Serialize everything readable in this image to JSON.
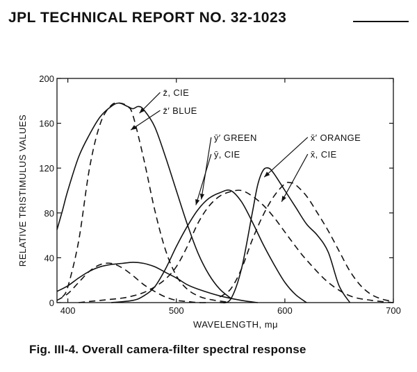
{
  "header": {
    "title": "JPL TECHNICAL REPORT NO. 32-1023"
  },
  "caption": "Fig. III-4.  Overall camera-filter spectral response",
  "chart_data": {
    "type": "line",
    "xlabel": "WAVELENGTH, mμ",
    "ylabel": "RELATIVE TRISTIMULUS VALUES",
    "xlim": [
      390,
      700
    ],
    "ylim": [
      0,
      200
    ],
    "xticks": [
      400,
      500,
      600,
      700
    ],
    "yticks": [
      0,
      40,
      80,
      120,
      160,
      200
    ],
    "grid": false,
    "series": [
      {
        "name": "z̄, CIE",
        "style": "dashed",
        "x": [
          395,
          400,
          410,
          420,
          430,
          440,
          448,
          455,
          460,
          470,
          480,
          490,
          500,
          510,
          520,
          530,
          550
        ],
        "y": [
          5,
          14,
          55,
          120,
          160,
          176,
          178,
          175,
          167,
          128,
          83,
          47,
          24,
          12,
          6,
          3,
          0
        ]
      },
      {
        "name": "z̄′ BLUE",
        "style": "solid",
        "x": [
          390,
          395,
          400,
          410,
          420,
          430,
          440,
          447,
          455,
          460,
          465,
          470,
          480,
          490,
          500,
          510,
          520,
          530,
          540,
          550
        ],
        "y": [
          65,
          82,
          100,
          130,
          150,
          166,
          175,
          178,
          175,
          173,
          175,
          172,
          157,
          130,
          100,
          70,
          44,
          25,
          12,
          4
        ]
      },
      {
        "name": "ȳ′ GREEN",
        "style": "solid",
        "x": [
          440,
          460,
          470,
          480,
          490,
          500,
          510,
          520,
          530,
          540,
          550,
          560,
          570,
          580,
          590,
          600,
          610,
          620
        ],
        "y": [
          0,
          2,
          6,
          14,
          30,
          50,
          68,
          83,
          93,
          98,
          100,
          90,
          72,
          52,
          34,
          18,
          7,
          0
        ]
      },
      {
        "name": "ȳ, CIE",
        "style": "dashed",
        "x": [
          410,
          430,
          450,
          460,
          470,
          480,
          490,
          500,
          510,
          520,
          530,
          540,
          550,
          560,
          570,
          580,
          590,
          600,
          610,
          620,
          640,
          660,
          680,
          700
        ],
        "y": [
          0,
          2,
          4,
          6,
          9,
          14,
          21,
          32,
          50,
          71,
          86,
          95,
          99,
          100,
          95,
          87,
          76,
          63,
          50,
          38,
          18,
          6,
          2,
          0
        ]
      },
      {
        "name": "x̄′ ORANGE",
        "style": "solid",
        "x": [
          540,
          550,
          560,
          570,
          575,
          580,
          585,
          590,
          600,
          610,
          620,
          630,
          640,
          650,
          660
        ],
        "y": [
          0,
          3,
          30,
          80,
          105,
          118,
          120,
          115,
          100,
          85,
          70,
          60,
          45,
          15,
          0
        ]
      },
      {
        "name": "x̄, CIE",
        "style": "dashed",
        "x": [
          540,
          550,
          560,
          570,
          580,
          590,
          600,
          605,
          610,
          620,
          630,
          640,
          650,
          660,
          670,
          680,
          690,
          700
        ],
        "y": [
          5,
          12,
          30,
          56,
          78,
          95,
          106,
          107,
          105,
          95,
          80,
          64,
          46,
          28,
          15,
          7,
          3,
          1
        ]
      },
      {
        "name": "",
        "style": "dashed",
        "x": [
          390,
          400,
          410,
          420,
          430,
          440,
          450,
          460,
          470,
          480,
          490,
          500,
          510,
          520,
          530
        ],
        "y": [
          2,
          8,
          18,
          28,
          34,
          35,
          31,
          24,
          16,
          10,
          5,
          2,
          1,
          0,
          0
        ]
      },
      {
        "name": "",
        "style": "solid",
        "x": [
          390,
          400,
          410,
          420,
          430,
          440,
          450,
          460,
          470,
          480,
          490,
          500,
          510,
          520,
          540,
          560,
          575
        ],
        "y": [
          10,
          15,
          22,
          28,
          32,
          34,
          35,
          36,
          35,
          32,
          27,
          22,
          16,
          12,
          6,
          2,
          0
        ]
      }
    ],
    "labels": [
      {
        "text": "z̄, CIE",
        "x": 487,
        "y": 185,
        "ax": 466,
        "ay": 169
      },
      {
        "text": "z̄′ BLUE",
        "x": 487,
        "y": 169,
        "ax": 458,
        "ay": 154
      },
      {
        "text": "ȳ′ GREEN",
        "x": 534,
        "y": 145,
        "ax": 523,
        "ay": 92
      },
      {
        "text": "ȳ, CIE",
        "x": 534,
        "y": 130,
        "ax": 518,
        "ay": 87
      },
      {
        "text": "x̄′ ORANGE",
        "x": 623,
        "y": 145,
        "ax": 581,
        "ay": 112
      },
      {
        "text": "x̄, CIE",
        "x": 623,
        "y": 130,
        "ax": 597,
        "ay": 90
      }
    ]
  }
}
